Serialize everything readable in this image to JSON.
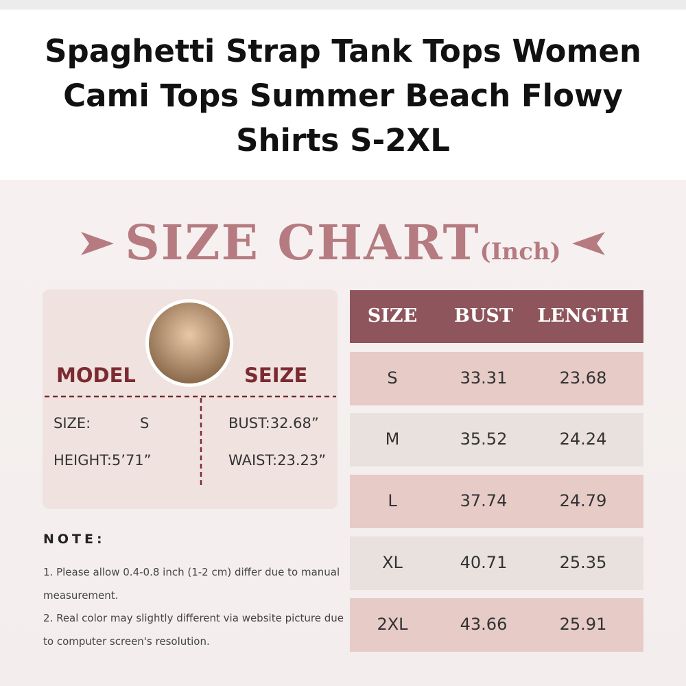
{
  "title": "Spaghetti Strap Tank Tops Women Cami Tops Summer Beach Flowy Shirts S-2XL",
  "size_chart": {
    "heading": "SIZE CHART",
    "unit": "(Inch)"
  },
  "model": {
    "left_label": "MODEL",
    "right_label": "SEIZE",
    "size_label": "SIZE:",
    "size_value": "S",
    "height": "HEIGHT:5’71”",
    "bust": "BUST:32.68”",
    "waist": "WAIST:23.23”"
  },
  "note": {
    "title": "NOTE:",
    "lines": [
      "1. Please allow 0.4-0.8 inch (1-2 cm) differ due to manual measurement.",
      "2. Real color may slightly different via website picture due to computer screen's resolution."
    ]
  },
  "table": {
    "header": [
      "SIZE",
      "BUST",
      "LENGTH"
    ],
    "rows": [
      [
        "S",
        "33.31",
        "23.68"
      ],
      [
        "M",
        "35.52",
        "24.24"
      ],
      [
        "L",
        "37.74",
        "24.79"
      ],
      [
        "XL",
        "40.71",
        "25.35"
      ],
      [
        "2XL",
        "43.66",
        "25.91"
      ]
    ]
  }
}
